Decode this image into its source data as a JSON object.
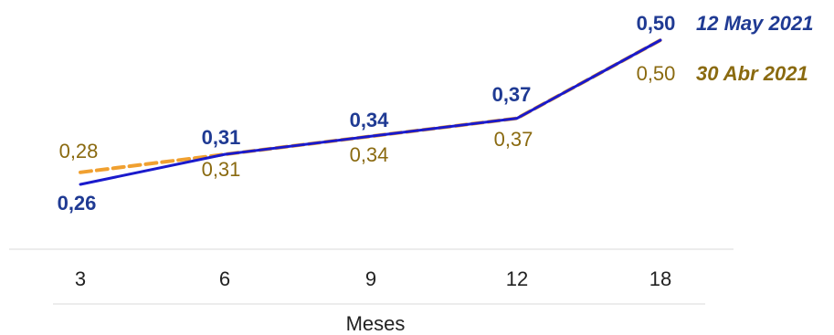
{
  "chart_data": {
    "type": "line",
    "categories": [
      "3",
      "6",
      "9",
      "12",
      "18"
    ],
    "xlabel": "Meses",
    "ylim": [
      0.2,
      0.55
    ],
    "series": [
      {
        "name": "12 May 2021",
        "values": [
          0.26,
          0.31,
          0.34,
          0.37,
          0.5
        ],
        "labels": [
          "0,26",
          "0,31",
          "0,34",
          "0,37",
          "0,50"
        ],
        "color": "#1a1acc",
        "label_color": "#1f3a93",
        "style": "solid"
      },
      {
        "name": "30 Abr 2021",
        "values": [
          0.28,
          0.31,
          0.34,
          0.37,
          0.5
        ],
        "labels": [
          "0,28",
          "0,31",
          "0,34",
          "0,37",
          "0,50"
        ],
        "color": "#f0a030",
        "label_color": "#8a6a10",
        "style": "dashed"
      }
    ],
    "grid": false,
    "legend": "right"
  }
}
